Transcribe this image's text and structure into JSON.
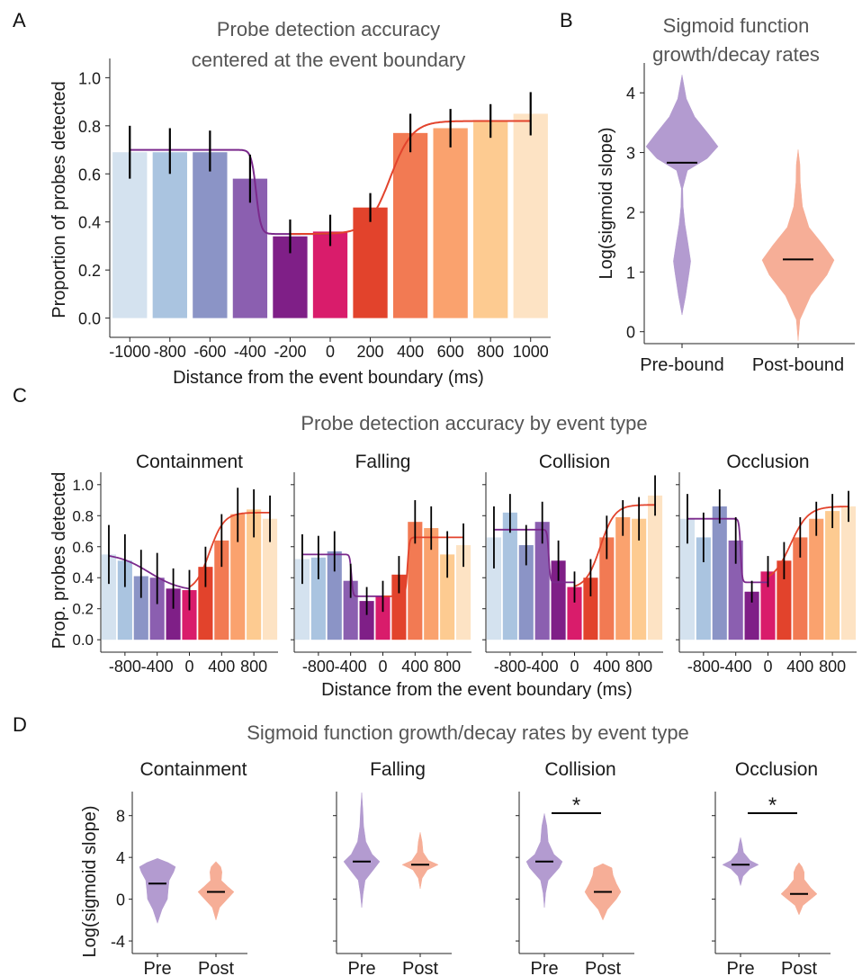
{
  "colors": {
    "bars": [
      "#d4e2ef",
      "#aac4e0",
      "#8b94c6",
      "#8b5fb0",
      "#7f1f87",
      "#d91c6b",
      "#e2432c",
      "#f27a53",
      "#faa26e",
      "#fdcb91",
      "#fde3c4"
    ],
    "pre_violin": "#b39bd0",
    "post_violin": "#f6ae97",
    "curve_pre": "#7b2a8c",
    "curve_post": "#e2432c"
  },
  "panels": {
    "a": {
      "letter": "A",
      "title_lines": [
        "Probe detection accuracy",
        "centered at the event boundary"
      ]
    },
    "b": {
      "letter": "B",
      "title_lines": [
        "Sigmoid function",
        "growth/decay rates"
      ]
    },
    "c": {
      "letter": "C",
      "title": "Probe detection accuracy by event type"
    },
    "d": {
      "letter": "D",
      "title": "Sigmoid function growth/decay rates by event type"
    }
  },
  "chart_data": [
    {
      "id": "A",
      "type": "bar",
      "title": "Probe detection accuracy centered at the event boundary",
      "xlabel": "Distance from the event boundary (ms)",
      "ylabel": "Proportion of probes detected",
      "categories": [
        "-1000",
        "-800",
        "-600",
        "-400",
        "-200",
        "0",
        "200",
        "400",
        "600",
        "800",
        "1000"
      ],
      "values": [
        0.69,
        0.69,
        0.69,
        0.58,
        0.34,
        0.36,
        0.46,
        0.77,
        0.79,
        0.82,
        0.85
      ],
      "err_low": [
        0.58,
        0.6,
        0.61,
        0.48,
        0.27,
        0.3,
        0.4,
        0.69,
        0.71,
        0.75,
        0.76
      ],
      "err_high": [
        0.8,
        0.79,
        0.78,
        0.68,
        0.41,
        0.43,
        0.52,
        0.85,
        0.87,
        0.89,
        0.94
      ],
      "fit_pre": {
        "x_start": -1000,
        "x_end": 0,
        "y_high": 0.7,
        "y_low": 0.35,
        "center": -370,
        "scale": 12
      },
      "fit_post": {
        "x_start": -200,
        "x_end": 1000,
        "y_low": 0.35,
        "y_high": 0.82,
        "center": 300,
        "scale": 55
      },
      "ylim": [
        -0.08,
        1.08
      ],
      "yticks": [
        "0.0",
        "0.2",
        "0.4",
        "0.6",
        "0.8",
        "1.0"
      ],
      "grid": false
    },
    {
      "id": "B",
      "type": "violin",
      "title": "Sigmoid function growth/decay rates",
      "ylabel": "Log(sigmoid slope)",
      "categories": [
        "Pre-bound",
        "Post-bound"
      ],
      "ylim": [
        -0.2,
        4.5
      ],
      "yticks": [
        "0",
        "1",
        "2",
        "3",
        "4"
      ],
      "violins": [
        {
          "label": "Pre-bound",
          "median": 2.83,
          "min": 0.28,
          "max": 4.3,
          "profile": [
            [
              0.28,
              0.0
            ],
            [
              0.6,
              0.1
            ],
            [
              1.0,
              0.2
            ],
            [
              1.18,
              0.24
            ],
            [
              1.5,
              0.16
            ],
            [
              1.8,
              0.08
            ],
            [
              2.1,
              0.03
            ],
            [
              2.4,
              0.02
            ],
            [
              2.7,
              0.15
            ],
            [
              2.9,
              0.7
            ],
            [
              3.1,
              1.0
            ],
            [
              3.3,
              0.75
            ],
            [
              3.6,
              0.35
            ],
            [
              3.9,
              0.12
            ],
            [
              4.3,
              0.0
            ]
          ]
        },
        {
          "label": "Post-bound",
          "median": 1.21,
          "min": -0.15,
          "max": 3.05,
          "profile": [
            [
              -0.15,
              0.0
            ],
            [
              0.2,
              0.05
            ],
            [
              0.6,
              0.35
            ],
            [
              0.95,
              0.8
            ],
            [
              1.2,
              1.0
            ],
            [
              1.45,
              0.7
            ],
            [
              1.75,
              0.3
            ],
            [
              2.1,
              0.12
            ],
            [
              2.5,
              0.06
            ],
            [
              2.8,
              0.05
            ],
            [
              3.05,
              0.0
            ]
          ]
        }
      ]
    },
    {
      "id": "C",
      "type": "bar",
      "title": "Probe detection accuracy by event type",
      "xlabel": "Distance from the event boundary (ms)",
      "ylabel": "Prop. probes detected",
      "ylim": [
        -0.08,
        1.08
      ],
      "yticks": [
        "0.0",
        "0.2",
        "0.4",
        "0.6",
        "0.8",
        "1.0"
      ],
      "xtick_values": [
        -800,
        -400,
        0,
        400,
        800
      ],
      "xtick_labels": [
        "-800",
        "-400",
        "0",
        "400",
        "800"
      ],
      "x": [
        -1000,
        -800,
        -600,
        -400,
        -200,
        0,
        200,
        400,
        600,
        800,
        1000
      ],
      "subplots": [
        {
          "name": "Containment",
          "values": [
            0.55,
            0.51,
            0.41,
            0.4,
            0.33,
            0.32,
            0.47,
            0.64,
            0.81,
            0.84,
            0.78
          ],
          "err_low": [
            0.36,
            0.34,
            0.27,
            0.23,
            0.2,
            0.19,
            0.34,
            0.47,
            0.63,
            0.66,
            0.63
          ],
          "err_high": [
            0.74,
            0.68,
            0.58,
            0.56,
            0.46,
            0.45,
            0.6,
            0.81,
            0.98,
            0.97,
            0.93
          ],
          "fit_pre": {
            "y_high": 0.56,
            "y_low": 0.31,
            "center": -500,
            "scale": 200
          },
          "fit_post": {
            "y_low": 0.31,
            "y_high": 0.82,
            "center": 250,
            "scale": 90
          }
        },
        {
          "name": "Falling",
          "values": [
            0.52,
            0.53,
            0.57,
            0.38,
            0.25,
            0.28,
            0.42,
            0.76,
            0.72,
            0.55,
            0.61
          ],
          "err_low": [
            0.36,
            0.39,
            0.44,
            0.27,
            0.16,
            0.18,
            0.3,
            0.62,
            0.58,
            0.4,
            0.47
          ],
          "err_high": [
            0.68,
            0.67,
            0.7,
            0.49,
            0.34,
            0.38,
            0.54,
            0.9,
            0.86,
            0.7,
            0.75
          ],
          "fit_pre": {
            "y_high": 0.55,
            "y_low": 0.28,
            "center": -390,
            "scale": 10
          },
          "fit_post": {
            "y_low": 0.28,
            "y_high": 0.66,
            "center": 305,
            "scale": 12
          }
        },
        {
          "name": "Collision",
          "values": [
            0.66,
            0.82,
            0.61,
            0.76,
            0.51,
            0.34,
            0.4,
            0.66,
            0.79,
            0.78,
            0.93
          ],
          "err_low": [
            0.46,
            0.69,
            0.48,
            0.62,
            0.38,
            0.24,
            0.28,
            0.52,
            0.67,
            0.64,
            0.8
          ],
          "err_high": [
            0.86,
            0.94,
            0.74,
            0.89,
            0.64,
            0.44,
            0.52,
            0.8,
            0.9,
            0.92,
            1.06
          ],
          "fit_pre": {
            "y_high": 0.71,
            "y_low": 0.37,
            "center": -320,
            "scale": 10
          },
          "fit_post": {
            "y_low": 0.33,
            "y_high": 0.87,
            "center": 320,
            "scale": 90
          }
        },
        {
          "name": "Occlusion",
          "values": [
            0.78,
            0.66,
            0.86,
            0.64,
            0.31,
            0.44,
            0.51,
            0.66,
            0.78,
            0.83,
            0.86
          ],
          "err_low": [
            0.62,
            0.5,
            0.75,
            0.49,
            0.24,
            0.34,
            0.39,
            0.53,
            0.67,
            0.72,
            0.76
          ],
          "err_high": [
            0.94,
            0.82,
            0.97,
            0.79,
            0.38,
            0.54,
            0.63,
            0.79,
            0.89,
            0.94,
            0.96
          ],
          "fit_pre": {
            "y_high": 0.78,
            "y_low": 0.37,
            "center": -340,
            "scale": 10
          },
          "fit_post": {
            "y_low": 0.37,
            "y_high": 0.86,
            "center": 280,
            "scale": 110
          }
        }
      ]
    },
    {
      "id": "D",
      "type": "violin",
      "title": "Sigmoid function growth/decay rates by event type",
      "ylabel": "Log(sigmoid slope)",
      "categories": [
        "Pre",
        "Post"
      ],
      "ylim": [
        -5.2,
        10.3
      ],
      "yticks": [
        "8",
        "4",
        "0",
        "-4"
      ],
      "ytick_values": [
        8,
        4,
        0,
        -4
      ],
      "subplots": [
        {
          "name": "Containment",
          "significance": "",
          "violins": [
            {
              "label": "Pre",
              "median": 1.5,
              "profile": [
                [
                  -2.3,
                  0.0
                ],
                [
                  -1.0,
                  0.25
                ],
                [
                  0.0,
                  0.55
                ],
                [
                  1.0,
                  0.6
                ],
                [
                  1.8,
                  0.65
                ],
                [
                  2.6,
                  0.9
                ],
                [
                  3.1,
                  1.0
                ],
                [
                  3.5,
                  0.6
                ],
                [
                  3.9,
                  0.0
                ]
              ]
            },
            {
              "label": "Post",
              "median": 0.7,
              "profile": [
                [
                  -2.0,
                  0.0
                ],
                [
                  -0.8,
                  0.15
                ],
                [
                  0.2,
                  0.55
                ],
                [
                  0.7,
                  0.75
                ],
                [
                  1.2,
                  0.5
                ],
                [
                  1.8,
                  0.22
                ],
                [
                  2.6,
                  0.25
                ],
                [
                  3.1,
                  0.2
                ],
                [
                  3.6,
                  0.0
                ]
              ]
            }
          ]
        },
        {
          "name": "Falling",
          "significance": "",
          "violins": [
            {
              "label": "Pre",
              "median": 3.6,
              "profile": [
                [
                  -0.8,
                  0.0
                ],
                [
                  0.5,
                  0.07
                ],
                [
                  1.8,
                  0.18
                ],
                [
                  3.0,
                  0.7
                ],
                [
                  3.6,
                  0.95
                ],
                [
                  4.3,
                  0.55
                ],
                [
                  5.5,
                  0.22
                ],
                [
                  7.0,
                  0.1
                ],
                [
                  8.5,
                  0.06
                ],
                [
                  10.2,
                  0.0
                ]
              ]
            },
            {
              "label": "Post",
              "median": 3.3,
              "profile": [
                [
                  1.0,
                  0.0
                ],
                [
                  2.0,
                  0.08
                ],
                [
                  2.8,
                  0.3
                ],
                [
                  3.3,
                  0.75
                ],
                [
                  3.7,
                  0.35
                ],
                [
                  4.5,
                  0.12
                ],
                [
                  5.5,
                  0.08
                ],
                [
                  6.4,
                  0.0
                ]
              ]
            }
          ]
        },
        {
          "name": "Collision",
          "significance": "*",
          "violins": [
            {
              "label": "Pre",
              "median": 3.6,
              "profile": [
                [
                  -0.8,
                  0.0
                ],
                [
                  0.6,
                  0.06
                ],
                [
                  1.8,
                  0.18
                ],
                [
                  3.0,
                  0.7
                ],
                [
                  3.6,
                  0.85
                ],
                [
                  4.3,
                  0.45
                ],
                [
                  5.5,
                  0.18
                ],
                [
                  7.0,
                  0.12
                ],
                [
                  8.2,
                  0.0
                ]
              ]
            },
            {
              "label": "Post",
              "median": 0.7,
              "profile": [
                [
                  -2.0,
                  0.0
                ],
                [
                  -1.0,
                  0.2
                ],
                [
                  0.0,
                  0.6
                ],
                [
                  0.7,
                  0.8
                ],
                [
                  1.5,
                  0.6
                ],
                [
                  2.3,
                  0.45
                ],
                [
                  3.0,
                  0.4
                ],
                [
                  3.4,
                  0.0
                ]
              ]
            }
          ]
        },
        {
          "name": "Occlusion",
          "significance": "*",
          "violins": [
            {
              "label": "Pre",
              "median": 3.3,
              "profile": [
                [
                  1.3,
                  0.0
                ],
                [
                  2.2,
                  0.1
                ],
                [
                  2.9,
                  0.4
                ],
                [
                  3.3,
                  0.75
                ],
                [
                  3.7,
                  0.4
                ],
                [
                  4.5,
                  0.12
                ],
                [
                  5.3,
                  0.06
                ],
                [
                  5.9,
                  0.0
                ]
              ]
            },
            {
              "label": "Post",
              "median": 0.5,
              "profile": [
                [
                  -1.5,
                  0.0
                ],
                [
                  -0.6,
                  0.15
                ],
                [
                  0.1,
                  0.5
                ],
                [
                  0.5,
                  0.7
                ],
                [
                  1.1,
                  0.45
                ],
                [
                  1.9,
                  0.2
                ],
                [
                  2.6,
                  0.2
                ],
                [
                  3.1,
                  0.12
                ],
                [
                  3.5,
                  0.0
                ]
              ]
            }
          ]
        }
      ]
    }
  ]
}
